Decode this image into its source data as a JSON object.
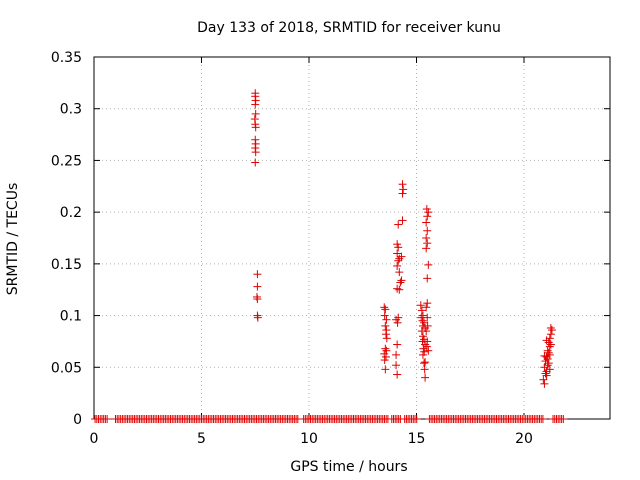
{
  "chart_data": {
    "type": "scatter",
    "title": "Day 133 of 2018, SRMTID for receiver kunu",
    "xlabel": "GPS time / hours",
    "ylabel": "SRMTID / TECUs",
    "xlim": [
      0,
      24
    ],
    "ylim": [
      0,
      0.35
    ],
    "xticks": [
      0,
      5,
      10,
      15,
      20
    ],
    "xtick_labels": [
      "0",
      "5",
      "10",
      "15",
      "20"
    ],
    "yticks": [
      0,
      0.05,
      0.1,
      0.15,
      0.2,
      0.25,
      0.3,
      0.35
    ],
    "ytick_labels": [
      "0",
      "0.05",
      "0.1",
      "0.15",
      "0.2",
      "0.25",
      "0.3",
      "0.35"
    ],
    "grid": true,
    "marker": "+",
    "marker_color": "#e00000",
    "zero_band": {
      "x_ranges": [
        [
          0.05,
          0.65
        ],
        [
          1.0,
          9.55
        ],
        [
          9.75,
          13.7
        ],
        [
          13.85,
          14.3
        ],
        [
          14.45,
          15.05
        ],
        [
          15.6,
          20.95
        ],
        [
          21.35,
          21.9
        ]
      ],
      "y": 0
    },
    "series": [
      {
        "name": "SRMTID",
        "points": [
          [
            7.5,
            0.315
          ],
          [
            7.5,
            0.312
          ],
          [
            7.52,
            0.308
          ],
          [
            7.5,
            0.304
          ],
          [
            7.52,
            0.295
          ],
          [
            7.48,
            0.29
          ],
          [
            7.5,
            0.285
          ],
          [
            7.52,
            0.282
          ],
          [
            7.5,
            0.27
          ],
          [
            7.52,
            0.266
          ],
          [
            7.5,
            0.262
          ],
          [
            7.52,
            0.258
          ],
          [
            7.5,
            0.248
          ],
          [
            7.6,
            0.14
          ],
          [
            7.6,
            0.128
          ],
          [
            7.58,
            0.118
          ],
          [
            7.6,
            0.116
          ],
          [
            7.6,
            0.1
          ],
          [
            7.62,
            0.098
          ],
          [
            13.5,
            0.108
          ],
          [
            13.55,
            0.106
          ],
          [
            13.52,
            0.1
          ],
          [
            13.6,
            0.096
          ],
          [
            13.55,
            0.09
          ],
          [
            13.6,
            0.086
          ],
          [
            13.58,
            0.082
          ],
          [
            13.62,
            0.078
          ],
          [
            13.55,
            0.068
          ],
          [
            13.6,
            0.066
          ],
          [
            13.5,
            0.063
          ],
          [
            13.58,
            0.06
          ],
          [
            13.52,
            0.057
          ],
          [
            13.55,
            0.048
          ],
          [
            14.05,
            0.052
          ],
          [
            14.1,
            0.043
          ],
          [
            14.05,
            0.062
          ],
          [
            14.1,
            0.072
          ],
          [
            14.12,
            0.093
          ],
          [
            14.05,
            0.096
          ],
          [
            14.15,
            0.098
          ],
          [
            14.2,
            0.125
          ],
          [
            14.1,
            0.126
          ],
          [
            14.25,
            0.132
          ],
          [
            14.3,
            0.134
          ],
          [
            14.2,
            0.142
          ],
          [
            14.1,
            0.148
          ],
          [
            14.15,
            0.153
          ],
          [
            14.2,
            0.155
          ],
          [
            14.3,
            0.157
          ],
          [
            14.1,
            0.16
          ],
          [
            14.15,
            0.166
          ],
          [
            14.1,
            0.169
          ],
          [
            14.15,
            0.188
          ],
          [
            14.35,
            0.192
          ],
          [
            14.35,
            0.218
          ],
          [
            14.38,
            0.222
          ],
          [
            14.35,
            0.227
          ],
          [
            15.2,
            0.11
          ],
          [
            15.25,
            0.105
          ],
          [
            15.3,
            0.1
          ],
          [
            15.22,
            0.098
          ],
          [
            15.28,
            0.095
          ],
          [
            15.35,
            0.093
          ],
          [
            15.3,
            0.09
          ],
          [
            15.4,
            0.088
          ],
          [
            15.25,
            0.085
          ],
          [
            15.3,
            0.08
          ],
          [
            15.35,
            0.077
          ],
          [
            15.28,
            0.075
          ],
          [
            15.4,
            0.072
          ],
          [
            15.32,
            0.068
          ],
          [
            15.36,
            0.065
          ],
          [
            15.3,
            0.062
          ],
          [
            15.4,
            0.055
          ],
          [
            15.35,
            0.054
          ],
          [
            15.38,
            0.048
          ],
          [
            15.4,
            0.04
          ],
          [
            15.5,
            0.112
          ],
          [
            15.45,
            0.108
          ],
          [
            15.5,
            0.098
          ],
          [
            15.52,
            0.09
          ],
          [
            15.45,
            0.085
          ],
          [
            15.5,
            0.075
          ],
          [
            15.48,
            0.07
          ],
          [
            15.55,
            0.066
          ],
          [
            15.5,
            0.136
          ],
          [
            15.55,
            0.149
          ],
          [
            15.45,
            0.165
          ],
          [
            15.5,
            0.17
          ],
          [
            15.45,
            0.175
          ],
          [
            15.5,
            0.182
          ],
          [
            15.45,
            0.19
          ],
          [
            15.5,
            0.196
          ],
          [
            15.55,
            0.2
          ],
          [
            15.48,
            0.203
          ],
          [
            20.9,
            0.038
          ],
          [
            20.95,
            0.034
          ],
          [
            21.0,
            0.044
          ],
          [
            20.95,
            0.05
          ],
          [
            21.05,
            0.046
          ],
          [
            21.1,
            0.052
          ],
          [
            21.0,
            0.056
          ],
          [
            21.05,
            0.06
          ],
          [
            21.1,
            0.058
          ],
          [
            21.15,
            0.064
          ],
          [
            21.2,
            0.062
          ],
          [
            21.1,
            0.066
          ],
          [
            21.2,
            0.07
          ],
          [
            21.15,
            0.074
          ],
          [
            21.25,
            0.072
          ],
          [
            21.2,
            0.078
          ],
          [
            21.25,
            0.082
          ],
          [
            21.3,
            0.086
          ],
          [
            21.25,
            0.088
          ],
          [
            21.05,
            0.042
          ],
          [
            21.2,
            0.048
          ],
          [
            21.15,
            0.054
          ],
          [
            20.95,
            0.061
          ],
          [
            21.05,
            0.076
          ]
        ]
      }
    ]
  }
}
